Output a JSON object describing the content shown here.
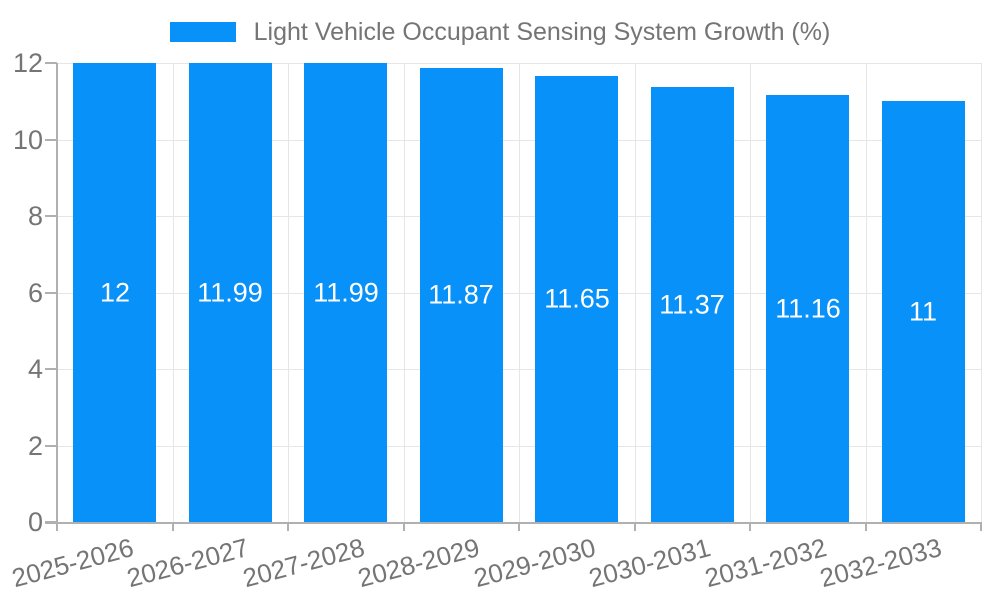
{
  "legend": {
    "label": "Light Vehicle Occupant Sensing System Growth (%)"
  },
  "chart_data": {
    "type": "bar",
    "title": "Light Vehicle Occupant Sensing System Growth (%)",
    "categories": [
      "2025-2026",
      "2026-2027",
      "2027-2028",
      "2028-2029",
      "2029-2030",
      "2030-2031",
      "2031-2032",
      "2032-2033"
    ],
    "values": [
      12,
      11.99,
      11.99,
      11.87,
      11.65,
      11.37,
      11.16,
      11
    ],
    "value_labels": [
      "12",
      "11.99",
      "11.99",
      "11.87",
      "11.65",
      "11.37",
      "11.16",
      "11"
    ],
    "xlabel": "",
    "ylabel": "",
    "ylim": [
      0,
      12
    ],
    "yticks": [
      0,
      2,
      4,
      6,
      8,
      10,
      12
    ],
    "ytick_labels": [
      "0",
      "2",
      "4",
      "6",
      "8",
      "10",
      "12"
    ],
    "grid": "on",
    "legend_position": "top",
    "bar_color": "#0891f8",
    "bar_label_color": "#ffffff",
    "axis_label_color": "#757575",
    "gridline_color": "#e6e6e6",
    "axis_line_color": "#b0b0b0"
  }
}
